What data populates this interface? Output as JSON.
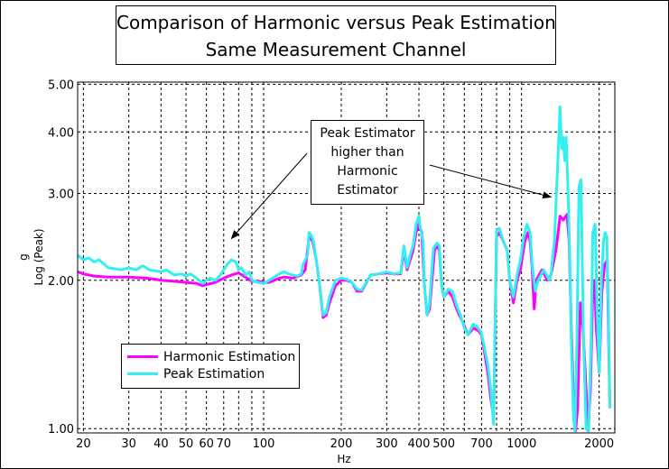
{
  "chart_data": {
    "type": "line",
    "title": "Comparison of Harmonic versus Peak Estimation",
    "subtitle": "Same Measurement Channel",
    "xlabel": "Hz",
    "ylabel_top": "g",
    "ylabel": "Log (Peak)",
    "xscale": "log",
    "yscale": "log",
    "xlim": [
      19,
      2300
    ],
    "ylim": [
      0.98,
      5.05
    ],
    "grid": true,
    "x_ticks": [
      {
        "value": 20,
        "label": "20"
      },
      {
        "value": 30,
        "label": "30"
      },
      {
        "value": 40,
        "label": "40"
      },
      {
        "value": 50,
        "label": "50"
      },
      {
        "value": 60,
        "label": "60"
      },
      {
        "value": 70,
        "label": "70"
      },
      {
        "value": 100,
        "label": "100"
      },
      {
        "value": 200,
        "label": "200"
      },
      {
        "value": 300,
        "label": "300"
      },
      {
        "value": 400,
        "label": "400"
      },
      {
        "value": 500,
        "label": "500"
      },
      {
        "value": 700,
        "label": "700"
      },
      {
        "value": 1000,
        "label": "1000"
      },
      {
        "value": 2000,
        "label": "2000"
      }
    ],
    "x_grid": [
      20,
      30,
      40,
      50,
      60,
      70,
      80,
      90,
      100,
      200,
      300,
      400,
      500,
      600,
      700,
      800,
      900,
      1000,
      2000
    ],
    "y_ticks": [
      {
        "value": 1.0,
        "label": "1.00"
      },
      {
        "value": 2.0,
        "label": "2.00"
      },
      {
        "value": 3.0,
        "label": "3.00"
      },
      {
        "value": 4.0,
        "label": "4.00"
      },
      {
        "value": 5.0,
        "label": "5.00"
      }
    ],
    "legend_position": "bottom-left",
    "series": [
      {
        "name": "Harmonic Estimation",
        "color": "#ff00ff",
        "points": [
          [
            19,
            2.08
          ],
          [
            20,
            2.06
          ],
          [
            22,
            2.04
          ],
          [
            25,
            2.03
          ],
          [
            30,
            2.03
          ],
          [
            35,
            2.02
          ],
          [
            38,
            2.01
          ],
          [
            40,
            2.0
          ],
          [
            45,
            1.99
          ],
          [
            50,
            1.98
          ],
          [
            55,
            1.97
          ],
          [
            58,
            1.95
          ],
          [
            60,
            1.96
          ],
          [
            65,
            1.98
          ],
          [
            70,
            2.02
          ],
          [
            75,
            2.05
          ],
          [
            80,
            2.07
          ],
          [
            85,
            2.03
          ],
          [
            90,
            1.99
          ],
          [
            95,
            1.99
          ],
          [
            100,
            1.98
          ],
          [
            105,
            1.98
          ],
          [
            110,
            2.0
          ],
          [
            115,
            2.02
          ],
          [
            120,
            2.03
          ],
          [
            130,
            2.02
          ],
          [
            140,
            2.05
          ],
          [
            145,
            2.1
          ],
          [
            150,
            2.45
          ],
          [
            155,
            2.4
          ],
          [
            160,
            2.2
          ],
          [
            165,
            1.95
          ],
          [
            170,
            1.68
          ],
          [
            175,
            1.7
          ],
          [
            180,
            1.8
          ],
          [
            190,
            1.95
          ],
          [
            200,
            2.0
          ],
          [
            210,
            2.0
          ],
          [
            220,
            1.98
          ],
          [
            230,
            1.9
          ],
          [
            240,
            1.9
          ],
          [
            260,
            2.05
          ],
          [
            280,
            2.06
          ],
          [
            300,
            2.07
          ],
          [
            320,
            2.06
          ],
          [
            340,
            2.06
          ],
          [
            350,
            2.3
          ],
          [
            360,
            2.1
          ],
          [
            370,
            2.2
          ],
          [
            380,
            2.3
          ],
          [
            390,
            2.5
          ],
          [
            400,
            2.6
          ],
          [
            410,
            2.5
          ],
          [
            420,
            1.95
          ],
          [
            430,
            1.7
          ],
          [
            440,
            1.75
          ],
          [
            460,
            2.3
          ],
          [
            470,
            2.35
          ],
          [
            480,
            2.3
          ],
          [
            490,
            1.95
          ],
          [
            500,
            1.85
          ],
          [
            520,
            1.9
          ],
          [
            540,
            1.85
          ],
          [
            560,
            1.75
          ],
          [
            590,
            1.65
          ],
          [
            620,
            1.55
          ],
          [
            650,
            1.6
          ],
          [
            680,
            1.58
          ],
          [
            700,
            1.55
          ],
          [
            720,
            1.42
          ],
          [
            740,
            1.3
          ],
          [
            760,
            1.15
          ],
          [
            780,
            1.05
          ],
          [
            800,
            2.45
          ],
          [
            820,
            2.5
          ],
          [
            850,
            2.4
          ],
          [
            880,
            2.3
          ],
          [
            900,
            2.0
          ],
          [
            930,
            1.8
          ],
          [
            960,
            2.0
          ],
          [
            990,
            2.1
          ],
          [
            1030,
            2.4
          ],
          [
            1060,
            2.5
          ],
          [
            1080,
            2.4
          ],
          [
            1100,
            2.1
          ],
          [
            1120,
            1.75
          ],
          [
            1140,
            2.0
          ],
          [
            1170,
            2.05
          ],
          [
            1200,
            2.1
          ],
          [
            1230,
            2.05
          ],
          [
            1260,
            2.0
          ],
          [
            1300,
            2.05
          ],
          [
            1360,
            2.3
          ],
          [
            1410,
            2.7
          ],
          [
            1450,
            2.65
          ],
          [
            1500,
            2.72
          ],
          [
            1530,
            2.4
          ],
          [
            1560,
            1.6
          ],
          [
            1590,
            1.15
          ],
          [
            1620,
            0.99
          ],
          [
            1650,
            1.1
          ],
          [
            1690,
            1.8
          ],
          [
            1730,
            1.6
          ],
          [
            1780,
            1.2
          ],
          [
            1810,
            0.99
          ],
          [
            1850,
            1.2
          ],
          [
            1890,
            1.9
          ],
          [
            1920,
            2.0
          ],
          [
            1950,
            1.6
          ],
          [
            2000,
            1.3
          ],
          [
            2050,
            1.9
          ],
          [
            2100,
            2.15
          ],
          [
            2150,
            2.2
          ],
          [
            2200,
            1.1
          ]
        ]
      },
      {
        "name": "Peak Estimation",
        "color": "#33f0f0",
        "points": [
          [
            19,
            2.25
          ],
          [
            20,
            2.2
          ],
          [
            21,
            2.22
          ],
          [
            22,
            2.18
          ],
          [
            23,
            2.2
          ],
          [
            25,
            2.12
          ],
          [
            28,
            2.1
          ],
          [
            30,
            2.12
          ],
          [
            32,
            2.1
          ],
          [
            34,
            2.14
          ],
          [
            36,
            2.1
          ],
          [
            40,
            2.08
          ],
          [
            42,
            2.1
          ],
          [
            45,
            2.05
          ],
          [
            48,
            2.06
          ],
          [
            50,
            2.04
          ],
          [
            52,
            2.06
          ],
          [
            55,
            2.02
          ],
          [
            58,
            1.97
          ],
          [
            60,
            2.0
          ],
          [
            62,
            2.02
          ],
          [
            65,
            2.0
          ],
          [
            68,
            2.05
          ],
          [
            70,
            2.1
          ],
          [
            72,
            2.15
          ],
          [
            75,
            2.2
          ],
          [
            78,
            2.18
          ],
          [
            80,
            2.1
          ],
          [
            82,
            2.12
          ],
          [
            85,
            2.05
          ],
          [
            88,
            2.08
          ],
          [
            90,
            2.0
          ],
          [
            95,
            1.98
          ],
          [
            100,
            1.97
          ],
          [
            105,
            2.0
          ],
          [
            110,
            2.03
          ],
          [
            115,
            2.06
          ],
          [
            120,
            2.08
          ],
          [
            125,
            2.06
          ],
          [
            130,
            2.05
          ],
          [
            135,
            2.04
          ],
          [
            140,
            2.06
          ],
          [
            142,
            2.15
          ],
          [
            145,
            2.2
          ],
          [
            148,
            2.25
          ],
          [
            150,
            2.5
          ],
          [
            153,
            2.47
          ],
          [
            156,
            2.4
          ],
          [
            160,
            2.2
          ],
          [
            165,
            1.95
          ],
          [
            170,
            1.7
          ],
          [
            175,
            1.72
          ],
          [
            180,
            1.85
          ],
          [
            190,
            2.0
          ],
          [
            200,
            2.02
          ],
          [
            210,
            2.01
          ],
          [
            220,
            1.98
          ],
          [
            230,
            1.92
          ],
          [
            240,
            1.91
          ],
          [
            260,
            2.05
          ],
          [
            280,
            2.06
          ],
          [
            300,
            2.08
          ],
          [
            320,
            2.06
          ],
          [
            340,
            2.07
          ],
          [
            350,
            2.35
          ],
          [
            360,
            2.12
          ],
          [
            370,
            2.25
          ],
          [
            380,
            2.35
          ],
          [
            390,
            2.6
          ],
          [
            400,
            2.7
          ],
          [
            405,
            2.55
          ],
          [
            415,
            2.4
          ],
          [
            420,
            1.95
          ],
          [
            430,
            1.7
          ],
          [
            440,
            1.8
          ],
          [
            455,
            2.32
          ],
          [
            470,
            2.38
          ],
          [
            480,
            2.35
          ],
          [
            490,
            1.95
          ],
          [
            500,
            1.85
          ],
          [
            520,
            1.92
          ],
          [
            540,
            1.9
          ],
          [
            560,
            1.78
          ],
          [
            580,
            1.7
          ],
          [
            600,
            1.6
          ],
          [
            620,
            1.55
          ],
          [
            650,
            1.63
          ],
          [
            680,
            1.6
          ],
          [
            700,
            1.56
          ],
          [
            720,
            1.45
          ],
          [
            740,
            1.35
          ],
          [
            760,
            1.2
          ],
          [
            780,
            1.02
          ],
          [
            800,
            2.52
          ],
          [
            820,
            2.55
          ],
          [
            850,
            2.4
          ],
          [
            880,
            2.3
          ],
          [
            900,
            2.0
          ],
          [
            930,
            1.85
          ],
          [
            960,
            2.05
          ],
          [
            990,
            2.2
          ],
          [
            1020,
            2.45
          ],
          [
            1050,
            2.6
          ],
          [
            1080,
            2.5
          ],
          [
            1100,
            2.15
          ],
          [
            1130,
            1.9
          ],
          [
            1160,
            2.0
          ],
          [
            1190,
            2.05
          ],
          [
            1220,
            2.1
          ],
          [
            1250,
            2.05
          ],
          [
            1280,
            2.0
          ],
          [
            1300,
            2.05
          ],
          [
            1340,
            2.4
          ],
          [
            1380,
            3.4
          ],
          [
            1410,
            4.5
          ],
          [
            1430,
            3.7
          ],
          [
            1450,
            3.9
          ],
          [
            1470,
            3.5
          ],
          [
            1490,
            3.9
          ],
          [
            1510,
            3.2
          ],
          [
            1540,
            2.2
          ],
          [
            1560,
            1.5
          ],
          [
            1590,
            1.05
          ],
          [
            1610,
            0.99
          ],
          [
            1640,
            1.5
          ],
          [
            1670,
            3.1
          ],
          [
            1700,
            3.2
          ],
          [
            1740,
            1.5
          ],
          [
            1780,
            1.0
          ],
          [
            1820,
            0.99
          ],
          [
            1860,
            1.5
          ],
          [
            1890,
            2.5
          ],
          [
            1930,
            2.6
          ],
          [
            1960,
            1.8
          ],
          [
            2000,
            1.3
          ],
          [
            2040,
            2.0
          ],
          [
            2080,
            2.4
          ],
          [
            2110,
            2.5
          ],
          [
            2140,
            2.45
          ],
          [
            2170,
            1.8
          ],
          [
            2200,
            1.1
          ]
        ]
      }
    ],
    "annotations": [
      {
        "text_lines": [
          "Peak Estimator",
          "higher than",
          "Harmonic",
          "Estimator"
        ],
        "arrows_to": [
          [
            75,
            2.43
          ],
          [
            1300,
            2.95
          ]
        ]
      }
    ]
  }
}
